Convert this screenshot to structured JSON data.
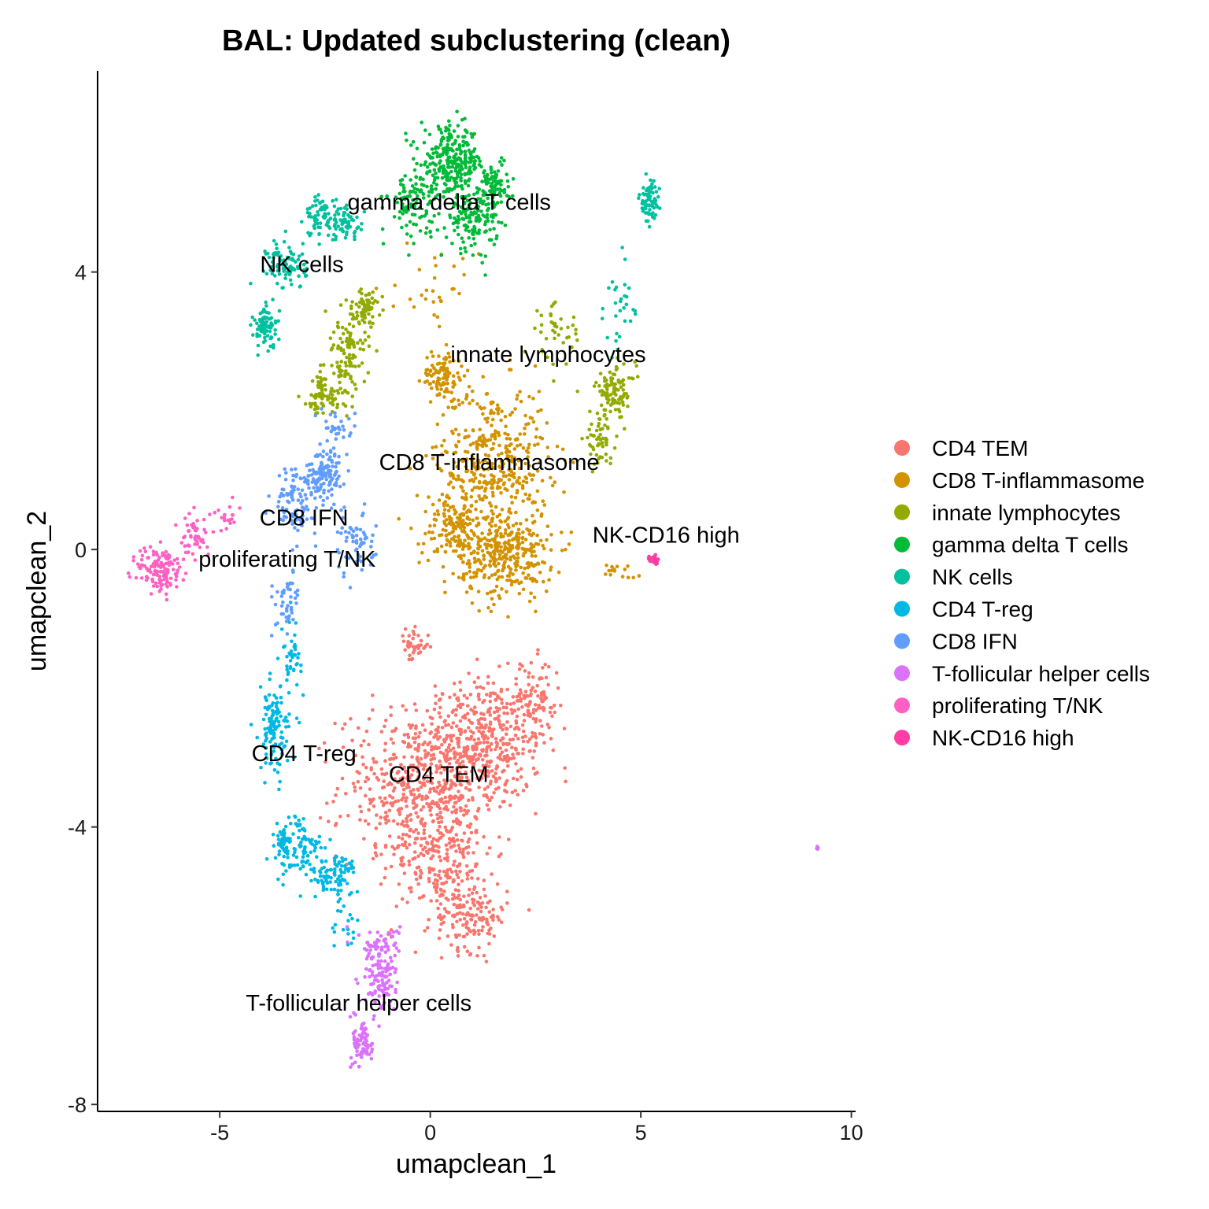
{
  "chart_data": {
    "type": "scatter",
    "title": "BAL: Updated subclustering (clean)",
    "xlabel": "umapclean_1",
    "ylabel": "umapclean_2",
    "xlim": [
      -7.9,
      10.1
    ],
    "ylim": [
      -8.1,
      6.9
    ],
    "xticks": [
      -5,
      0,
      5,
      10
    ],
    "yticks": [
      -8,
      -4,
      0,
      4
    ],
    "xtick_labels": [
      "-5",
      "0",
      "5",
      "10"
    ],
    "ytick_labels": [
      "-8",
      "-4",
      "0",
      "4"
    ],
    "legend_position": "right",
    "series": [
      {
        "name": "CD4 TEM",
        "color": "#F8766D",
        "blobs": [
          [
            1.2,
            -2.8,
            1.2,
            0.8,
            500
          ],
          [
            -0.5,
            -3.4,
            1.4,
            0.9,
            380
          ],
          [
            0.3,
            -4.3,
            1.0,
            0.9,
            300
          ],
          [
            1.0,
            -5.3,
            0.7,
            0.4,
            130
          ],
          [
            -0.4,
            -1.4,
            0.3,
            0.2,
            40
          ],
          [
            2.5,
            -2.2,
            0.5,
            0.5,
            90
          ]
        ]
      },
      {
        "name": "CD8 T-inflammasome",
        "color": "#D39200",
        "blobs": [
          [
            1.5,
            1.3,
            1.1,
            0.9,
            400
          ],
          [
            1.8,
            -0.1,
            0.9,
            0.5,
            320
          ],
          [
            0.3,
            2.5,
            0.4,
            0.3,
            100
          ],
          [
            0.6,
            0.3,
            0.7,
            0.5,
            160
          ],
          [
            4.5,
            -0.3,
            0.3,
            0.1,
            15
          ],
          [
            0.2,
            3.7,
            0.8,
            0.5,
            30
          ]
        ]
      },
      {
        "name": "innate lymphocytes",
        "color": "#93AA00",
        "blobs": [
          [
            -2.0,
            2.8,
            0.4,
            0.6,
            120
          ],
          [
            -1.5,
            3.5,
            0.3,
            0.2,
            60
          ],
          [
            -2.6,
            2.2,
            0.4,
            0.3,
            70
          ],
          [
            4.4,
            2.3,
            0.4,
            0.3,
            90
          ],
          [
            4.0,
            1.6,
            0.3,
            0.3,
            60
          ],
          [
            3.0,
            3.1,
            0.5,
            0.4,
            40
          ]
        ]
      },
      {
        "name": "gamma delta T cells",
        "color": "#00BA38",
        "blobs": [
          [
            0.5,
            5.6,
            0.6,
            0.4,
            260
          ],
          [
            1.0,
            4.8,
            0.5,
            0.4,
            160
          ],
          [
            -0.4,
            5.0,
            0.5,
            0.4,
            100
          ],
          [
            1.5,
            5.3,
            0.3,
            0.3,
            80
          ]
        ]
      },
      {
        "name": "NK cells",
        "color": "#00C19F",
        "blobs": [
          [
            -3.9,
            3.2,
            0.25,
            0.25,
            80
          ],
          [
            -3.4,
            4.1,
            0.4,
            0.3,
            90
          ],
          [
            -2.6,
            4.8,
            0.3,
            0.25,
            70
          ],
          [
            -2.0,
            4.7,
            0.4,
            0.2,
            60
          ],
          [
            5.2,
            5.0,
            0.2,
            0.25,
            70
          ],
          [
            4.5,
            3.5,
            0.3,
            0.6,
            30
          ]
        ]
      },
      {
        "name": "CD4 T-reg",
        "color": "#00B9E3",
        "blobs": [
          [
            -3.7,
            -2.6,
            0.3,
            0.5,
            120
          ],
          [
            -3.1,
            -4.3,
            0.5,
            0.4,
            100
          ],
          [
            -2.3,
            -4.7,
            0.5,
            0.25,
            90
          ],
          [
            -3.3,
            -1.5,
            0.2,
            0.4,
            40
          ],
          [
            -3.5,
            -4.3,
            0.15,
            0.2,
            30
          ],
          [
            -2.0,
            -5.4,
            0.3,
            0.3,
            20
          ]
        ]
      },
      {
        "name": "CD8 IFN",
        "color": "#619CFF",
        "blobs": [
          [
            -2.5,
            1.1,
            0.4,
            0.3,
            130
          ],
          [
            -3.2,
            0.7,
            0.4,
            0.4,
            90
          ],
          [
            -1.8,
            0.1,
            0.4,
            0.4,
            60
          ],
          [
            -3.4,
            -0.8,
            0.3,
            0.4,
            45
          ],
          [
            -2.2,
            1.8,
            0.4,
            0.2,
            30
          ]
        ]
      },
      {
        "name": "T-follicular helper cells",
        "color": "#DB72FB",
        "blobs": [
          [
            -1.2,
            -6.2,
            0.3,
            0.4,
            110
          ],
          [
            -1.6,
            -7.1,
            0.2,
            0.3,
            80
          ],
          [
            -1.2,
            -5.7,
            0.4,
            0.2,
            50
          ],
          [
            9.2,
            -4.3,
            0.03,
            0.05,
            6
          ]
        ]
      },
      {
        "name": "proliferating T/NK",
        "color": "#FF61C3",
        "blobs": [
          [
            -6.4,
            -0.3,
            0.45,
            0.3,
            130
          ],
          [
            -5.6,
            0.2,
            0.3,
            0.3,
            50
          ],
          [
            -4.8,
            0.5,
            0.3,
            0.2,
            20
          ]
        ]
      },
      {
        "name": "NK-CD16 high",
        "color": "#FF3DA5",
        "blobs": [
          [
            5.3,
            -0.15,
            0.08,
            0.06,
            30
          ]
        ]
      }
    ],
    "cluster_labels": [
      {
        "text": "gamma delta T cells",
        "x": 0.45,
        "y": 4.9
      },
      {
        "text": "NK cells",
        "x": -3.05,
        "y": 4.0
      },
      {
        "text": "innate lymphocytes",
        "x": 2.8,
        "y": 2.7
      },
      {
        "text": "CD8 T-inflammasome",
        "x": 1.4,
        "y": 1.15
      },
      {
        "text": "CD8 IFN",
        "x": -3.0,
        "y": 0.35
      },
      {
        "text": "proliferating T/NK",
        "x": -3.4,
        "y": -0.25
      },
      {
        "text": "NK-CD16 high",
        "x": 5.6,
        "y": 0.1
      },
      {
        "text": "CD4 T-reg",
        "x": -3.0,
        "y": -3.05
      },
      {
        "text": "CD4 TEM",
        "x": 0.2,
        "y": -3.35
      },
      {
        "text": "T-follicular helper cells",
        "x": -1.7,
        "y": -6.65
      }
    ]
  }
}
